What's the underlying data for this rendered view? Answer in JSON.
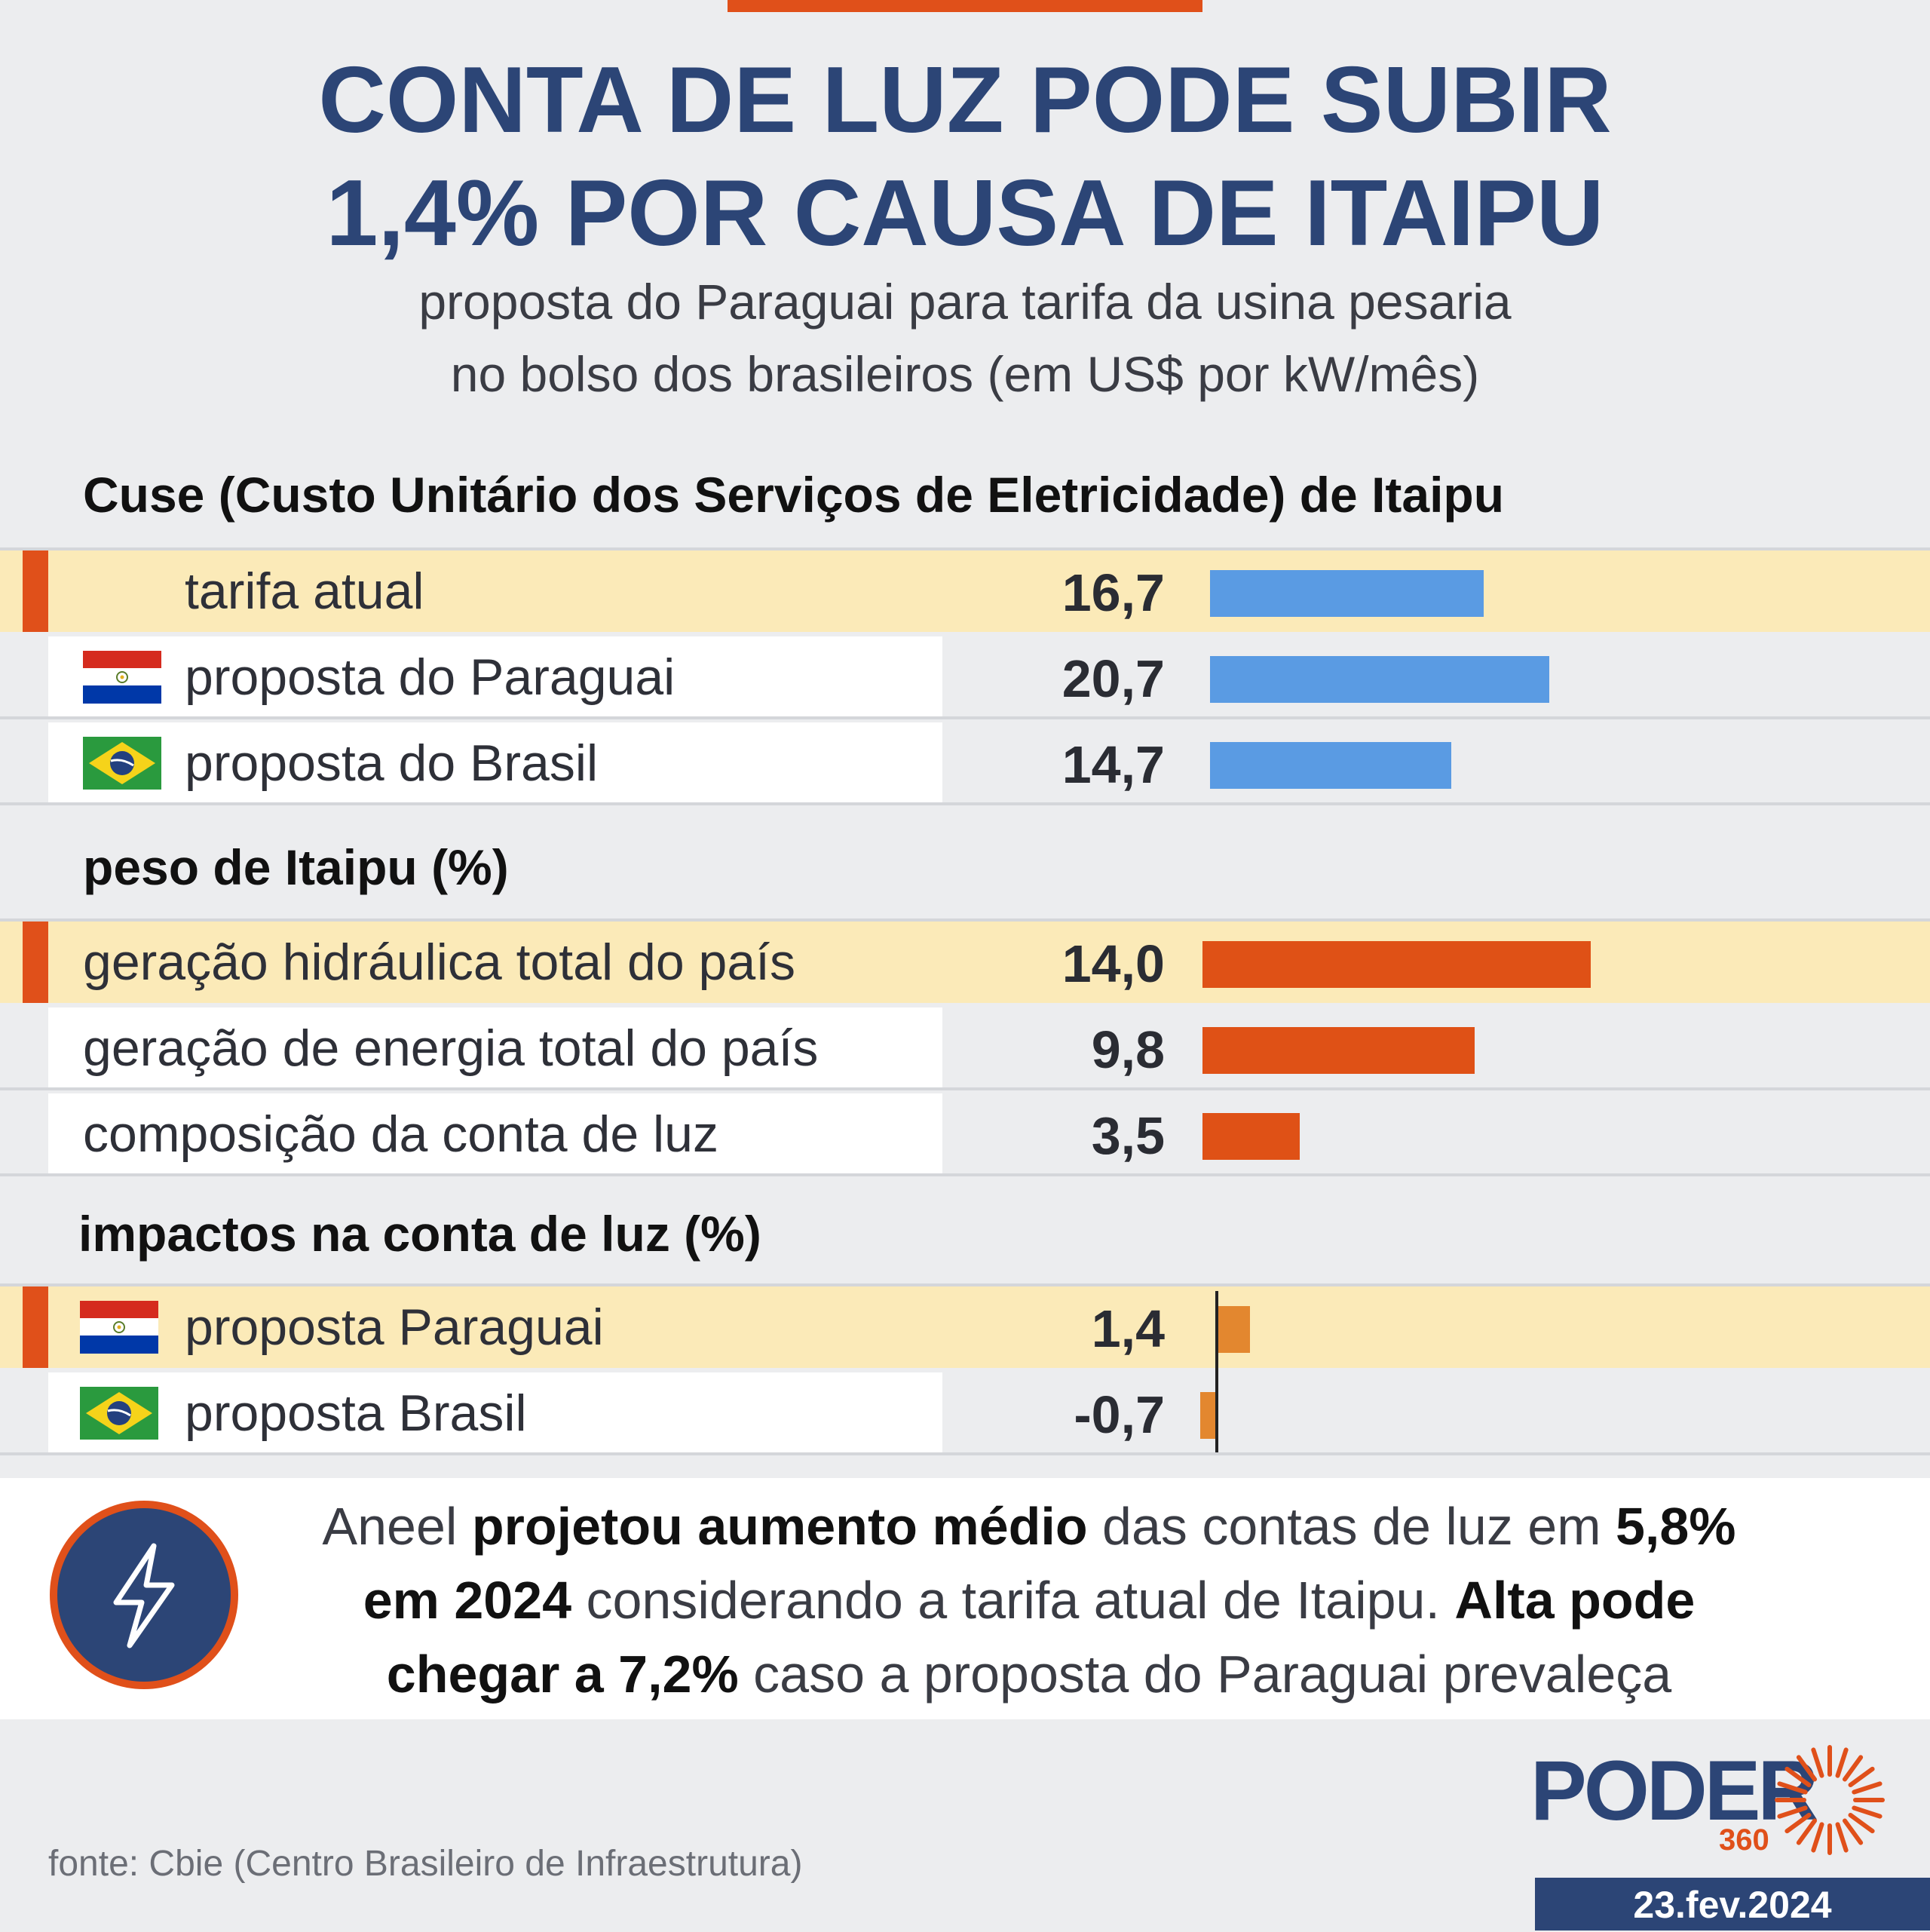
{
  "header": {
    "title_line1": "CONTA DE LUZ PODE SUBIR",
    "title_line2": "1,4% POR CAUSA DE ITAIPU",
    "subtitle_line1": "proposta do Paraguai para tarifa da usina pesaria",
    "subtitle_line2": "no bolso dos brasileiros (em US$ por kW/mês)"
  },
  "colors": {
    "accent": "#e0501a",
    "title_blue": "#2c4576",
    "bar_blue": "#5a9be3",
    "bar_orange": "#df5116",
    "bar_light_orange": "#e3872f",
    "highlight_row": "#fbeab8"
  },
  "chart_data": [
    {
      "type": "bar",
      "title": "Cuse (Custo Unitário dos Serviços de Eletricidade) de Itaipu",
      "categories": [
        "tarifa atual",
        "proposta do Paraguai",
        "proposta do Brasil"
      ],
      "values": [
        16.7,
        20.7,
        14.7
      ],
      "value_labels": [
        "16,7",
        "20,7",
        "14,7"
      ],
      "flags": [
        "",
        "paraguay-flag-icon",
        "brazil-flag-icon"
      ],
      "highlight": [
        true,
        false,
        false
      ],
      "xlim": [
        0,
        20.7
      ]
    },
    {
      "type": "bar",
      "title": "peso de Itaipu (%)",
      "categories": [
        "geração hidráulica total do país",
        "geração de energia total do país",
        "composição da conta de luz"
      ],
      "values": [
        14.0,
        9.8,
        3.5
      ],
      "value_labels": [
        "14,0",
        "9,8",
        "3,5"
      ],
      "highlight": [
        true,
        false,
        false
      ],
      "xlim": [
        0,
        14.0
      ]
    },
    {
      "type": "bar",
      "title": "impactos na conta de luz (%)",
      "categories": [
        "proposta Paraguai",
        "proposta Brasil"
      ],
      "values": [
        1.4,
        -0.7
      ],
      "value_labels": [
        "1,4",
        "-0,7"
      ],
      "flags": [
        "paraguay-flag-icon",
        "brazil-flag-icon"
      ],
      "highlight": [
        true,
        false
      ]
    }
  ],
  "footer": {
    "icon": "lightning-icon",
    "t1": "Aneel ",
    "b1": "projetou aumento médio",
    "t2": " das contas de luz em ",
    "b2": "5,8%",
    "b3": "em 2024",
    "t3": " considerando a tarifa atual de Itaipu. ",
    "b4": "Alta pode",
    "b5": "chegar a 7,2%",
    "t4": " caso a proposta do Paraguai prevaleça"
  },
  "source": "fonte: Cbie (Centro Brasileiro de Infraestrutura)",
  "brand": {
    "name": "PODER",
    "sub": "360",
    "logo_icon": "sun-rays-icon"
  },
  "date": "23.fev.2024"
}
